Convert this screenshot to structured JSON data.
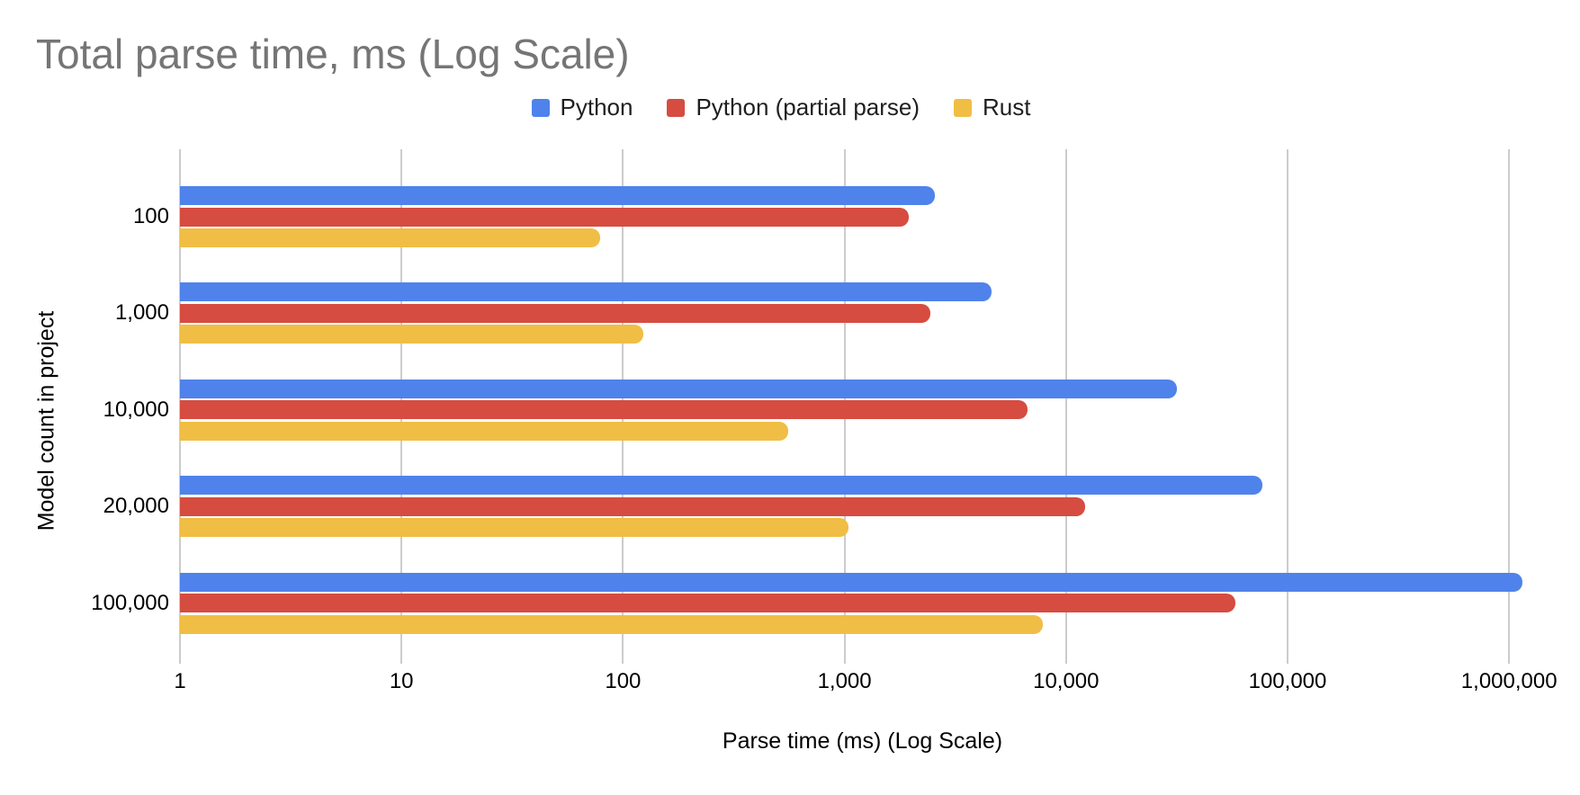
{
  "title": "Total parse time, ms (Log Scale)",
  "colors": {
    "title_text": "#757575",
    "axis_text": "#000000",
    "gridline": "#cccccc",
    "background": "#ffffff",
    "python_blue": "#4f83eb",
    "python_partial_red": "#d64c41",
    "rust_yellow": "#f0be44"
  },
  "chart_data": {
    "type": "bar",
    "orientation": "horizontal",
    "x_scale": "log",
    "title": "Total parse time, ms (Log Scale)",
    "xlabel": "Parse time (ms) (Log Scale)",
    "ylabel": "Model count in project",
    "categories": [
      "100",
      "1,000",
      "10,000",
      "20,000",
      "100,000"
    ],
    "series": [
      {
        "name": "Python",
        "color": "#4f83eb",
        "values": [
          2550,
          4600,
          31500,
          77000,
          1150000
        ]
      },
      {
        "name": "Python (partial parse)",
        "color": "#d64c41",
        "values": [
          1950,
          2450,
          6700,
          12200,
          58000
        ]
      },
      {
        "name": "Rust",
        "color": "#f0be44",
        "values": [
          79,
          123,
          555,
          1040,
          7850
        ]
      }
    ],
    "x_ticks": [
      {
        "label": "1",
        "value": 1
      },
      {
        "label": "10",
        "value": 10
      },
      {
        "label": "100",
        "value": 100
      },
      {
        "label": "1,000",
        "value": 1000
      },
      {
        "label": "10,000",
        "value": 10000
      },
      {
        "label": "100,000",
        "value": 100000
      },
      {
        "label": "1,000,000",
        "value": 1000000
      }
    ],
    "xlim": [
      1,
      1450000
    ],
    "grid": true,
    "legend_position": "top"
  }
}
